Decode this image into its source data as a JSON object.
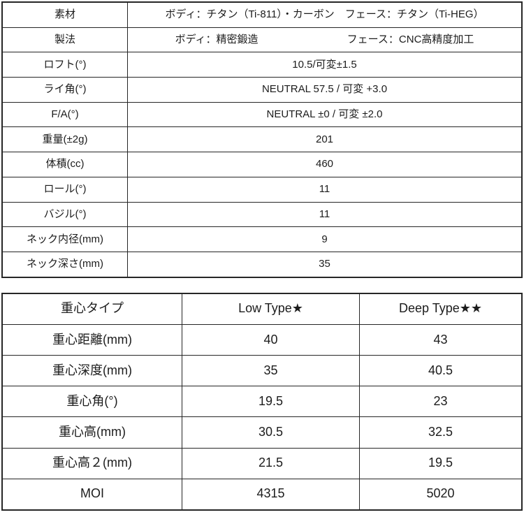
{
  "spec_table": {
    "rows": [
      {
        "label": "素材",
        "value": "ボディ：チタン（Ti-811）・カーボン　フェース：チタン（Ti-HEG）"
      },
      {
        "label": "製法",
        "value_left": "ボディ：精密鍛造",
        "value_right": "フェース：CNC高精度加工"
      },
      {
        "label": "ロフト(°)",
        "value": "10.5/可変±1.5"
      },
      {
        "label": "ライ角(°)",
        "value": "NEUTRAL 57.5 / 可変 +3.0"
      },
      {
        "label": "F/A(°)",
        "value": "NEUTRAL ±0 / 可変 ±2.0"
      },
      {
        "label": "重量(±2g)",
        "value": "201"
      },
      {
        "label": "体積(cc)",
        "value": "460"
      },
      {
        "label": "ロール(°)",
        "value": "11"
      },
      {
        "label": "バジル(°)",
        "value": "11"
      },
      {
        "label": "ネック内径(mm)",
        "value": "9"
      },
      {
        "label": "ネック深さ(mm)",
        "value": "35"
      }
    ]
  },
  "cg_table": {
    "header": {
      "col0": "重心タイプ",
      "col1": "Low Type★",
      "col2": "Deep Type★★"
    },
    "rows": [
      {
        "label": "重心距離(mm)",
        "low": "40",
        "deep": "43"
      },
      {
        "label": "重心深度(mm)",
        "low": "35",
        "deep": "40.5"
      },
      {
        "label": "重心角(°)",
        "low": "19.5",
        "deep": "23"
      },
      {
        "label": "重心高(mm)",
        "low": "30.5",
        "deep": "32.5"
      },
      {
        "label": "重心高２(mm)",
        "low": "21.5",
        "deep": "19.5"
      },
      {
        "label": "MOI",
        "low": "4315",
        "deep": "5020"
      }
    ]
  },
  "colors": {
    "border": "#262626",
    "text": "#1c1c1c",
    "background": "#ffffff"
  }
}
